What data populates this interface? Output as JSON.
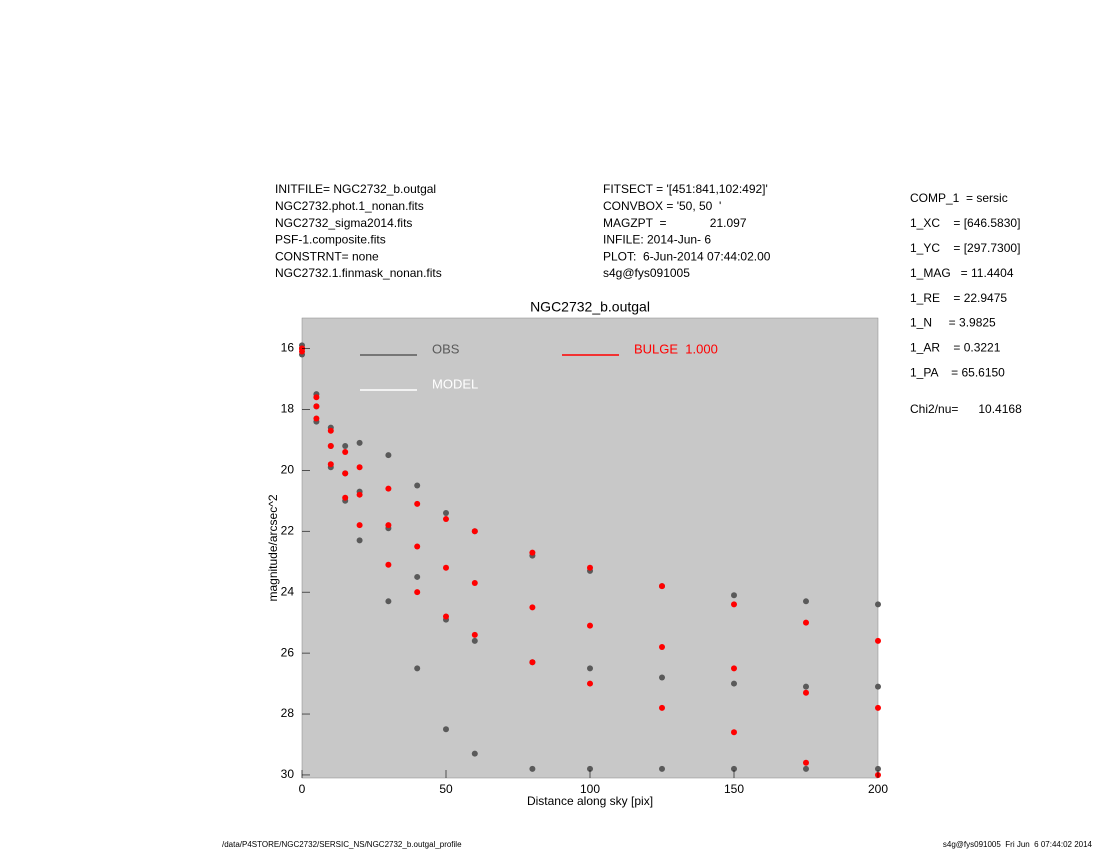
{
  "header": {
    "left": [
      "INITFILE= NGC2732_b.outgal",
      "NGC2732.phot.1_nonan.fits",
      "NGC2732_sigma2014.fits",
      "PSF-1.composite.fits",
      "CONSTRNT= none",
      "NGC2732.1.finmask_nonan.fits"
    ],
    "middle": [
      "FITSECT = '[451:841,102:492]'",
      "CONVBOX = '50, 50  '",
      "MAGZPT  =             21.097",
      "INFILE: 2014-Jun- 6",
      "PLOT:  6-Jun-2014 07:44:02.00",
      "s4g@fys091005"
    ],
    "right": [
      "COMP_1  = sersic",
      "1_XC    = [646.5830]",
      "1_YC    = [297.7300]",
      "1_MAG   = 11.4404",
      "1_RE    = 22.9475",
      "1_N     = 3.9825",
      "1_AR    = 0.3221",
      "1_PA    = 65.6150",
      "Chi2/nu=      10.4168"
    ]
  },
  "footer": {
    "left": "/data/P4STORE/NGC2732/SERSIC_NS/NGC2732_b.outgal_profile",
    "right": "s4g@fys091005  Fri Jun  6 07:44:02 2014"
  },
  "chart_data": {
    "type": "scatter",
    "title": "NGC2732_b.outgal",
    "x_label": "Distance along sky [pix]",
    "y_label": "magnitude/arcsec^2",
    "xlim": [
      0,
      200
    ],
    "xticks": [
      0,
      50,
      100,
      150,
      200
    ],
    "ylim": [
      30.1,
      15.0
    ],
    "yticks": [
      16,
      18,
      20,
      22,
      24,
      26,
      28,
      30
    ],
    "background": "#c8c8c8",
    "series": [
      {
        "name": "OBS",
        "color": "#5a5a5a",
        "x": [
          0,
          5,
          10,
          15,
          20,
          30,
          40,
          50,
          60,
          80,
          100,
          125,
          150,
          175,
          200,
          0,
          5,
          10,
          15,
          20,
          30,
          40,
          50,
          60,
          80,
          100,
          125,
          150,
          175,
          200,
          0,
          5,
          10,
          15,
          20,
          30,
          40,
          50,
          60,
          80,
          100,
          125,
          150,
          175,
          200
        ],
        "values": [
          15.9,
          17.5,
          18.6,
          19.2,
          19.1,
          19.5,
          20.5,
          21.4,
          22.0,
          22.8,
          23.3,
          23.8,
          24.1,
          24.3,
          24.4,
          16.0,
          17.9,
          19.2,
          20.1,
          20.7,
          21.9,
          23.5,
          24.9,
          25.6,
          26.3,
          26.5,
          26.8,
          27.0,
          27.1,
          27.1,
          16.2,
          18.4,
          19.9,
          21.0,
          22.3,
          24.3,
          26.5,
          28.5,
          29.3,
          29.8,
          29.8,
          29.8,
          29.8,
          29.8,
          29.8
        ]
      },
      {
        "name": "MODEL",
        "color": "#ffffff",
        "x": [],
        "values": []
      },
      {
        "name": "BULGE  1.000",
        "color": "#ff0000",
        "x": [
          0,
          5,
          10,
          15,
          20,
          30,
          40,
          50,
          60,
          80,
          100,
          125,
          150,
          175,
          200,
          0,
          5,
          10,
          15,
          20,
          30,
          40,
          50,
          60,
          80,
          100,
          125,
          150,
          175,
          200,
          0,
          5,
          10,
          15,
          20,
          30,
          40,
          50,
          60,
          80,
          100,
          125,
          150,
          175,
          200
        ],
        "values": [
          16.0,
          17.6,
          18.7,
          19.4,
          19.9,
          20.6,
          21.1,
          21.6,
          22.0,
          22.7,
          23.2,
          23.8,
          24.4,
          25.0,
          25.6,
          16.0,
          17.9,
          19.2,
          20.1,
          20.8,
          21.8,
          22.5,
          23.2,
          23.7,
          24.5,
          25.1,
          25.8,
          26.5,
          27.3,
          27.8,
          16.1,
          18.3,
          19.8,
          20.9,
          21.8,
          23.1,
          24.0,
          24.8,
          25.4,
          26.3,
          27.0,
          27.8,
          28.6,
          29.6,
          30.0
        ]
      }
    ]
  }
}
